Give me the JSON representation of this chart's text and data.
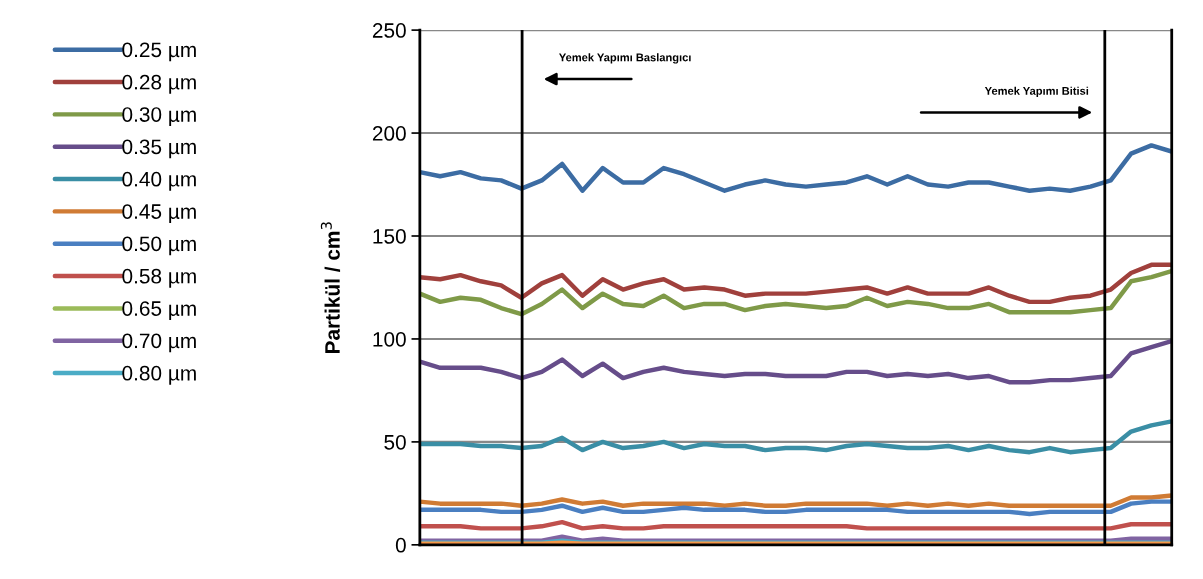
{
  "chart_data": {
    "type": "line",
    "ylabel": "Partikül / cm$^{3}$",
    "categories": [
      null,
      null,
      null,
      null,
      null,
      null,
      null,
      null,
      null,
      null,
      null,
      null,
      null,
      null,
      null,
      null,
      null,
      null,
      null,
      null,
      null,
      null,
      null,
      null,
      null,
      null,
      null,
      null,
      null,
      null,
      null,
      null,
      null,
      null,
      null,
      null,
      null,
      null
    ],
    "ylim": [
      0,
      250
    ],
    "yticks": [
      0,
      50,
      100,
      150,
      200,
      250
    ],
    "grid": "y",
    "legend": "left",
    "tick_labels": "y",
    "annotations": [
      "Yemek Yapımı Baslangıcı",
      "Yemek Yapımı Bitisi"
    ],
    "series": [
      {
        "name": "0.25 µm",
        "color": "#3c6ca3",
        "values": [
          181,
          179,
          181,
          178,
          177,
          173,
          177,
          185,
          172,
          183,
          176,
          176,
          183,
          180,
          176,
          172,
          175,
          177,
          175,
          174,
          175,
          176,
          179,
          175,
          179,
          175,
          174,
          176,
          176,
          174,
          172,
          173,
          172,
          174,
          177,
          190,
          194,
          191
        ]
      },
      {
        "name": "0.28 µm",
        "color": "#a0403c",
        "values": [
          130,
          129,
          131,
          128,
          126,
          120,
          127,
          131,
          121,
          129,
          124,
          127,
          129,
          124,
          125,
          124,
          121,
          122,
          122,
          122,
          123,
          124,
          125,
          122,
          125,
          122,
          122,
          122,
          125,
          121,
          118,
          118,
          120,
          121,
          124,
          132,
          136,
          136
        ]
      },
      {
        "name": "0.30 µm",
        "color": "#7f9a48",
        "values": [
          122,
          118,
          120,
          119,
          115,
          112,
          117,
          124,
          115,
          122,
          117,
          116,
          121,
          115,
          117,
          117,
          114,
          116,
          117,
          116,
          115,
          116,
          120,
          116,
          118,
          117,
          115,
          115,
          117,
          113,
          113,
          113,
          113,
          114,
          115,
          128,
          130,
          133
        ]
      },
      {
        "name": "0.35 µm",
        "color": "#664d8a",
        "values": [
          89,
          86,
          86,
          86,
          84,
          81,
          84,
          90,
          82,
          88,
          81,
          84,
          86,
          84,
          83,
          82,
          83,
          83,
          82,
          82,
          82,
          84,
          84,
          82,
          83,
          82,
          83,
          81,
          82,
          79,
          79,
          80,
          80,
          81,
          82,
          93,
          96,
          99
        ]
      },
      {
        "name": "0.40 µm",
        "color": "#3a8ea5",
        "values": [
          49,
          49,
          49,
          48,
          48,
          47,
          48,
          52,
          46,
          50,
          47,
          48,
          50,
          47,
          49,
          48,
          48,
          46,
          47,
          47,
          46,
          48,
          49,
          48,
          47,
          47,
          48,
          46,
          48,
          46,
          45,
          47,
          45,
          46,
          47,
          55,
          58,
          60
        ]
      },
      {
        "name": "0.45 µm",
        "color": "#d07b34",
        "values": [
          21,
          20,
          20,
          20,
          20,
          19,
          20,
          22,
          20,
          21,
          19,
          20,
          20,
          20,
          20,
          19,
          20,
          19,
          19,
          20,
          20,
          20,
          20,
          19,
          20,
          19,
          20,
          19,
          20,
          19,
          19,
          19,
          19,
          19,
          19,
          23,
          23,
          24
        ]
      },
      {
        "name": "0.50 µm",
        "color": "#4a7fc1",
        "values": [
          17,
          17,
          17,
          17,
          16,
          16,
          17,
          19,
          16,
          18,
          16,
          16,
          17,
          18,
          17,
          17,
          17,
          16,
          16,
          17,
          17,
          17,
          17,
          17,
          16,
          16,
          16,
          16,
          16,
          16,
          15,
          16,
          16,
          16,
          16,
          20,
          21,
          21
        ]
      },
      {
        "name": "0.58 µm",
        "color": "#c0504d",
        "values": [
          9,
          9,
          9,
          8,
          8,
          8,
          9,
          11,
          8,
          9,
          8,
          8,
          9,
          9,
          9,
          9,
          9,
          9,
          9,
          9,
          9,
          9,
          8,
          8,
          8,
          8,
          8,
          8,
          8,
          8,
          8,
          8,
          8,
          8,
          8,
          10,
          10,
          10
        ]
      },
      {
        "name": "0.65 µm",
        "color": "#9bbb59",
        "values": [
          null,
          null,
          null,
          null,
          null,
          null,
          null,
          null,
          null,
          null,
          null,
          null,
          null,
          null,
          null,
          null,
          null,
          null,
          null,
          null,
          null,
          null,
          null,
          null,
          null,
          null,
          null,
          null,
          null,
          null,
          null,
          null,
          null,
          null,
          null,
          null,
          null,
          null
        ]
      },
      {
        "name": "0.70 µm",
        "color": "#8064a2",
        "values": [
          2,
          2,
          2,
          2,
          2,
          2,
          2,
          4,
          2,
          3,
          2,
          2,
          2,
          2,
          2,
          2,
          2,
          2,
          2,
          2,
          2,
          2,
          2,
          2,
          2,
          2,
          2,
          2,
          2,
          2,
          2,
          2,
          2,
          2,
          2,
          3,
          3,
          3
        ]
      },
      {
        "name": "0.80 µm",
        "color": "#4bacc6",
        "values": [
          1,
          1,
          1,
          1,
          1,
          1,
          1,
          2,
          1,
          1,
          1,
          1,
          1,
          1,
          1,
          1,
          1,
          1,
          1,
          1,
          1,
          1,
          1,
          1,
          1,
          1,
          1,
          1,
          1,
          1,
          1,
          1,
          1,
          1,
          1,
          1,
          1,
          1
        ]
      },
      {
        "color": "#f79646",
        "values": [
          0.5,
          0.5,
          0.5,
          0.5,
          0.5,
          0.5,
          0.5,
          1,
          0.5,
          0.5,
          0.5,
          0.5,
          0.5,
          0.5,
          0.5,
          0.5,
          0.5,
          0.5,
          0.5,
          0.5,
          0.5,
          0.5,
          0.5,
          0.5,
          0.5,
          0.5,
          0.5,
          0.5,
          0.5,
          0.5,
          0.5,
          0.5,
          0.5,
          0.5,
          0.5,
          0.5,
          0.5,
          0.5
        ]
      }
    ]
  }
}
